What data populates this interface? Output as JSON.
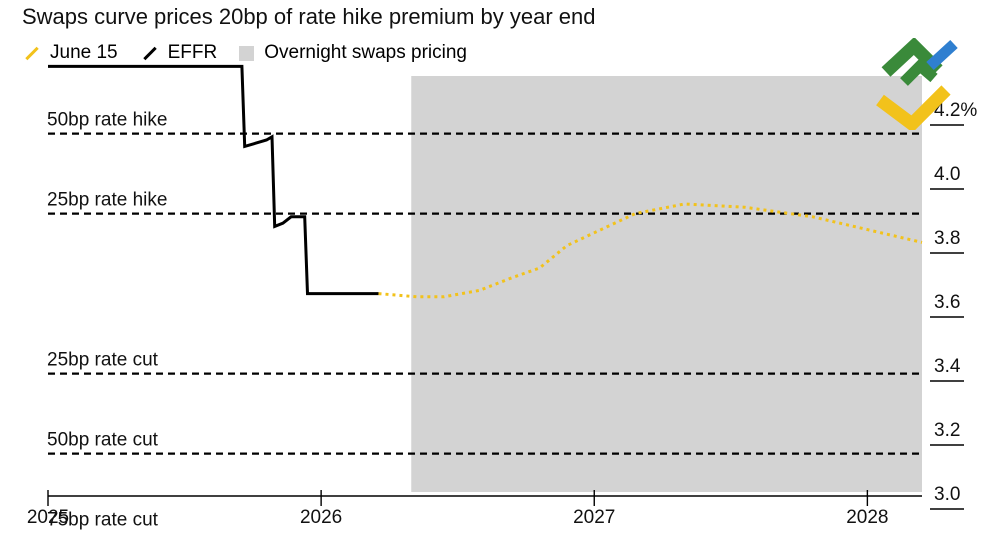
{
  "chart_data": {
    "type": "line",
    "title": "Swaps curve prices 20bp of rate hike premium by year end",
    "y_unit": "%",
    "ylim": [
      3.0,
      4.3
    ],
    "y_ticks": [
      {
        "value": 4.2,
        "label": "4.2%"
      },
      {
        "value": 4.0,
        "label": "4.0"
      },
      {
        "value": 3.8,
        "label": "3.8"
      },
      {
        "value": 3.6,
        "label": "3.6"
      },
      {
        "value": 3.4,
        "label": "3.4"
      },
      {
        "value": 3.2,
        "label": "3.2"
      },
      {
        "value": 3.0,
        "label": "3.0"
      }
    ],
    "xlim": [
      2025.0,
      2028.2
    ],
    "x_ticks": [
      {
        "value": 2025.0,
        "label": "2025"
      },
      {
        "value": 2026.0,
        "label": "2026"
      },
      {
        "value": 2027.0,
        "label": "2027"
      },
      {
        "value": 2028.0,
        "label": "2028"
      }
    ],
    "shaded_region": {
      "label": "Overnight swaps pricing",
      "x_start": 2026.33,
      "x_end": 2028.2,
      "color": "#d3d3d3"
    },
    "reference_lines": [
      {
        "label": "50bp rate hike",
        "value": 4.12
      },
      {
        "label": "25bp rate hike",
        "value": 3.87
      },
      {
        "label": "25bp rate cut",
        "value": 3.37
      },
      {
        "label": "50bp rate cut",
        "value": 3.12
      },
      {
        "label": "75bp rate cut",
        "value": 2.87
      }
    ],
    "series": [
      {
        "name": "EFFR",
        "color": "#000000",
        "style": "solid",
        "step": true,
        "points": [
          {
            "x": 2025.0,
            "y": 4.33
          },
          {
            "x": 2025.71,
            "y": 4.33
          },
          {
            "x": 2025.72,
            "y": 4.08
          },
          {
            "x": 2025.76,
            "y": 4.09
          },
          {
            "x": 2025.8,
            "y": 4.1
          },
          {
            "x": 2025.82,
            "y": 4.11
          },
          {
            "x": 2025.83,
            "y": 3.83
          },
          {
            "x": 2025.86,
            "y": 3.84
          },
          {
            "x": 2025.89,
            "y": 3.86
          },
          {
            "x": 2025.94,
            "y": 3.86
          },
          {
            "x": 2025.95,
            "y": 3.62
          },
          {
            "x": 2026.21,
            "y": 3.62
          }
        ]
      },
      {
        "name": "June 15",
        "color": "#f2c21b",
        "style": "dotted",
        "points": [
          {
            "x": 2026.21,
            "y": 3.62
          },
          {
            "x": 2026.35,
            "y": 3.61
          },
          {
            "x": 2026.45,
            "y": 3.61
          },
          {
            "x": 2026.58,
            "y": 3.63
          },
          {
            "x": 2026.7,
            "y": 3.67
          },
          {
            "x": 2026.8,
            "y": 3.7
          },
          {
            "x": 2026.9,
            "y": 3.77
          },
          {
            "x": 2027.0,
            "y": 3.81
          },
          {
            "x": 2027.15,
            "y": 3.87
          },
          {
            "x": 2027.33,
            "y": 3.9
          },
          {
            "x": 2027.55,
            "y": 3.89
          },
          {
            "x": 2027.8,
            "y": 3.86
          },
          {
            "x": 2028.0,
            "y": 3.82
          },
          {
            "x": 2028.2,
            "y": 3.78
          }
        ]
      }
    ]
  },
  "legend": [
    {
      "label": "June 15",
      "kind": "line",
      "color": "#f2c21b"
    },
    {
      "label": "EFFR",
      "kind": "line",
      "color": "#000000"
    },
    {
      "label": "Overnight swaps pricing",
      "kind": "box",
      "color": "#d3d3d3"
    }
  ],
  "logo": {
    "icon": "chevron-logo-icon",
    "colors": [
      "#3a8a3a",
      "#2f7fd0",
      "#f2c21b"
    ]
  }
}
